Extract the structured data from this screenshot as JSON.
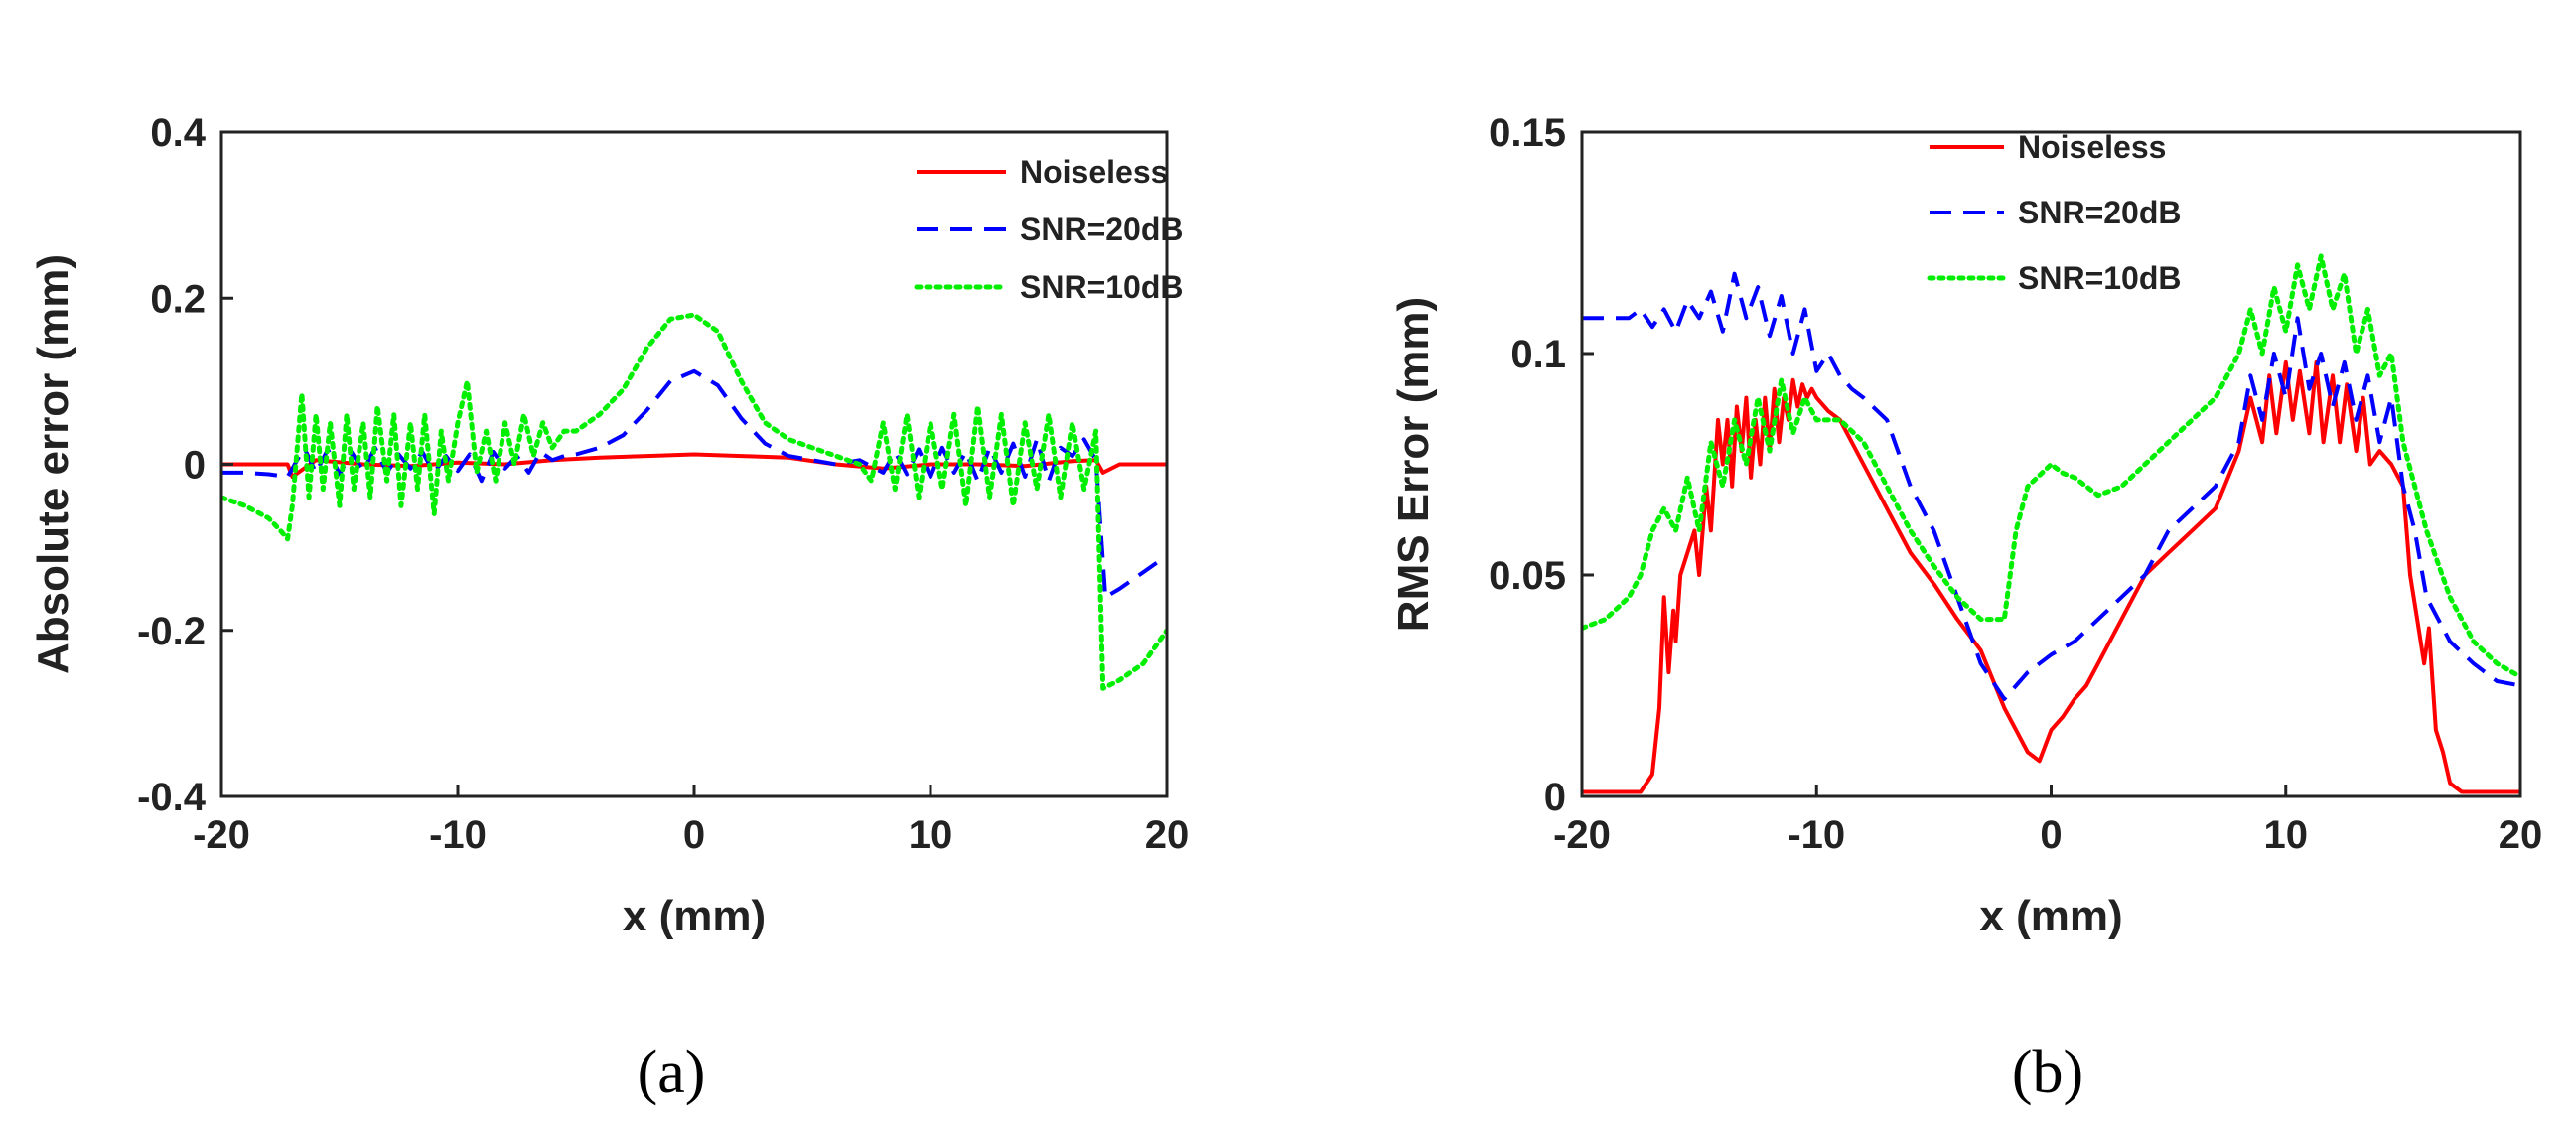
{
  "chart_data": [
    {
      "type": "line",
      "panel_label": "(a)",
      "xlabel": "x (mm)",
      "ylabel": "Absolute error (mm)",
      "xlim": [
        -20,
        20
      ],
      "ylim": [
        -0.4,
        0.4
      ],
      "xticks": [
        -20,
        -10,
        0,
        10,
        20
      ],
      "xtick_labels": [
        "-20",
        "-10",
        "0",
        "10",
        "20"
      ],
      "yticks": [
        -0.4,
        -0.2,
        0,
        0.2,
        0.4
      ],
      "ytick_labels": [
        "-0.4",
        "-0.2",
        "0",
        "0.2",
        "0.4"
      ],
      "legend_position": "top-right",
      "grid": false,
      "series": [
        {
          "name": "Noiseless",
          "color": "#ff0000",
          "style": "solid",
          "x": [
            -20,
            -17.2,
            -17,
            -16,
            -14,
            -12,
            -10,
            -8,
            -6,
            -4,
            -2,
            0,
            2,
            4,
            6,
            8,
            10,
            12,
            14,
            16,
            17,
            17.3,
            18,
            20
          ],
          "y": [
            0,
            0,
            -0.015,
            0.005,
            0,
            -0.002,
            0.002,
            0,
            0.005,
            0.008,
            0.01,
            0.012,
            0.01,
            0.008,
            0,
            -0.005,
            0,
            0,
            -0.002,
            0.004,
            0.005,
            -0.01,
            0,
            0
          ]
        },
        {
          "name": "SNR=20dB",
          "color": "#0000ff",
          "style": "dashed",
          "x": [
            -20,
            -19,
            -18,
            -17.2,
            -17,
            -16.5,
            -16,
            -15.5,
            -15,
            -14.5,
            -14,
            -13.5,
            -13,
            -12.5,
            -12,
            -11.5,
            -11,
            -10.5,
            -10,
            -9.5,
            -9,
            -8.5,
            -8,
            -7.5,
            -7,
            -6.5,
            -6,
            -5.5,
            -5,
            -4,
            -3,
            -2,
            -1,
            0,
            1,
            2,
            3,
            4,
            5,
            6,
            7,
            8,
            8.5,
            9,
            9.5,
            10,
            10.5,
            11,
            11.5,
            12,
            12.5,
            13,
            13.5,
            14,
            14.5,
            15,
            15.5,
            16,
            16.5,
            17,
            17.4,
            18,
            19,
            20
          ],
          "y": [
            -0.01,
            -0.01,
            -0.012,
            -0.015,
            -0.005,
            0.02,
            -0.01,
            0.018,
            -0.012,
            0.015,
            -0.008,
            0.02,
            -0.01,
            0.012,
            -0.005,
            0.015,
            -0.01,
            0.01,
            -0.008,
            0.012,
            -0.02,
            0.015,
            -0.005,
            0.01,
            -0.01,
            0.015,
            0.005,
            0.01,
            0.012,
            0.02,
            0.035,
            0.065,
            0.1,
            0.112,
            0.095,
            0.055,
            0.025,
            0.01,
            0.005,
            0,
            0.005,
            -0.01,
            0.015,
            -0.012,
            0.018,
            -0.015,
            0.02,
            -0.01,
            0.015,
            -0.02,
            0.02,
            -0.01,
            0.025,
            -0.015,
            0.03,
            -0.02,
            0.02,
            0.01,
            0.03,
            0.005,
            -0.16,
            -0.15,
            -0.13,
            -0.11
          ]
        },
        {
          "name": "SNR=10dB",
          "color": "#00ee00",
          "style": "dotted",
          "x": [
            -20,
            -19,
            -18,
            -17.5,
            -17.2,
            -17,
            -16.6,
            -16.3,
            -16,
            -15.7,
            -15.4,
            -15,
            -14.7,
            -14.4,
            -14,
            -13.7,
            -13.4,
            -13,
            -12.7,
            -12.4,
            -12,
            -11.7,
            -11.4,
            -11,
            -10.7,
            -10.4,
            -10,
            -9.6,
            -9.2,
            -8.8,
            -8.4,
            -8,
            -7.6,
            -7.2,
            -6.8,
            -6.4,
            -6,
            -5.5,
            -5,
            -4,
            -3,
            -2,
            -1,
            0,
            1,
            2,
            3,
            4,
            5,
            6,
            7,
            7.5,
            8,
            8.5,
            9,
            9.5,
            10,
            10.5,
            11,
            11.5,
            12,
            12.5,
            13,
            13.5,
            14,
            14.5,
            15,
            15.5,
            16,
            16.5,
            17,
            17.3,
            18,
            19,
            20
          ],
          "y": [
            -0.04,
            -0.05,
            -0.065,
            -0.08,
            -0.09,
            -0.05,
            0.085,
            -0.04,
            0.06,
            -0.03,
            0.05,
            -0.05,
            0.06,
            -0.03,
            0.05,
            -0.04,
            0.07,
            -0.02,
            0.06,
            -0.05,
            0.05,
            -0.03,
            0.06,
            -0.06,
            0.04,
            -0.02,
            0.05,
            0.1,
            -0.01,
            0.04,
            -0.02,
            0.05,
            0,
            0.06,
            0.01,
            0.05,
            0.02,
            0.04,
            0.04,
            0.06,
            0.09,
            0.14,
            0.175,
            0.18,
            0.16,
            0.1,
            0.05,
            0.03,
            0.02,
            0.01,
            0,
            -0.02,
            0.05,
            -0.03,
            0.06,
            -0.04,
            0.05,
            -0.03,
            0.06,
            -0.05,
            0.07,
            -0.04,
            0.06,
            -0.05,
            0.05,
            -0.03,
            0.06,
            -0.04,
            0.05,
            -0.03,
            0.04,
            -0.27,
            -0.26,
            -0.24,
            -0.2
          ]
        }
      ]
    },
    {
      "type": "line",
      "panel_label": "(b)",
      "xlabel": "x (mm)",
      "ylabel": "RMS Error (mm)",
      "xlim": [
        -20,
        20
      ],
      "ylim": [
        0,
        0.15
      ],
      "xticks": [
        -20,
        -10,
        0,
        10,
        20
      ],
      "xtick_labels": [
        "-20",
        "-10",
        "0",
        "10",
        "20"
      ],
      "yticks": [
        0,
        0.05,
        0.1,
        0.15
      ],
      "ytick_labels": [
        "0",
        "0.05",
        "0.1",
        "0.15"
      ],
      "legend_position": "top-center",
      "grid": false,
      "series": [
        {
          "name": "Noiseless",
          "color": "#ff0000",
          "style": "solid",
          "x": [
            -20,
            -18,
            -17.5,
            -17,
            -16.7,
            -16.5,
            -16.3,
            -16.1,
            -16,
            -15.8,
            -15.5,
            -15.2,
            -15,
            -14.7,
            -14.5,
            -14.2,
            -14,
            -13.8,
            -13.6,
            -13.4,
            -13.2,
            -13,
            -12.8,
            -12.6,
            -12.4,
            -12.2,
            -12,
            -11.8,
            -11.6,
            -11.4,
            -11.2,
            -11,
            -10.8,
            -10.6,
            -10.4,
            -10.2,
            -10,
            -9.5,
            -9,
            -8.5,
            -8,
            -7,
            -6,
            -5,
            -4,
            -3,
            -2,
            -1.5,
            -1,
            -0.5,
            0,
            0.5,
            1,
            1.5,
            2,
            3,
            4,
            5,
            6,
            7,
            8,
            8.5,
            9,
            9.3,
            9.6,
            10,
            10.3,
            10.6,
            11,
            11.3,
            11.6,
            12,
            12.3,
            12.6,
            13,
            13.3,
            13.6,
            14,
            14.5,
            15,
            15.3,
            15.6,
            15.9,
            16.1,
            16.4,
            16.7,
            17,
            17.5,
            18,
            20
          ],
          "y": [
            0.001,
            0.001,
            0.001,
            0.005,
            0.02,
            0.045,
            0.028,
            0.042,
            0.035,
            0.05,
            0.055,
            0.06,
            0.05,
            0.07,
            0.06,
            0.085,
            0.075,
            0.085,
            0.07,
            0.088,
            0.078,
            0.09,
            0.072,
            0.085,
            0.075,
            0.09,
            0.078,
            0.092,
            0.08,
            0.09,
            0.085,
            0.094,
            0.088,
            0.093,
            0.09,
            0.092,
            0.09,
            0.087,
            0.085,
            0.08,
            0.075,
            0.065,
            0.055,
            0.048,
            0.04,
            0.033,
            0.02,
            0.015,
            0.01,
            0.008,
            0.015,
            0.018,
            0.022,
            0.025,
            0.03,
            0.04,
            0.05,
            0.055,
            0.06,
            0.065,
            0.078,
            0.09,
            0.08,
            0.095,
            0.082,
            0.098,
            0.085,
            0.096,
            0.082,
            0.098,
            0.08,
            0.095,
            0.08,
            0.093,
            0.078,
            0.09,
            0.075,
            0.078,
            0.075,
            0.07,
            0.05,
            0.04,
            0.03,
            0.038,
            0.015,
            0.01,
            0.003,
            0.001,
            0.001,
            0.001
          ]
        },
        {
          "name": "SNR=20dB",
          "color": "#0000ff",
          "style": "dashed",
          "x": [
            -20,
            -19,
            -18,
            -17.5,
            -17,
            -16.5,
            -16,
            -15.5,
            -15,
            -14.5,
            -14,
            -13.5,
            -13,
            -12.5,
            -12,
            -11.5,
            -11,
            -10.5,
            -10,
            -9.5,
            -9,
            -8.5,
            -8,
            -7,
            -6,
            -5,
            -4,
            -3,
            -2,
            -1,
            0,
            1,
            2,
            3,
            4,
            5,
            6,
            7,
            8,
            8.5,
            9,
            9.5,
            10,
            10.5,
            11,
            11.5,
            12,
            12.5,
            13,
            13.5,
            14,
            14.5,
            15,
            15.5,
            16,
            17,
            18,
            19,
            20
          ],
          "y": [
            0.108,
            0.108,
            0.108,
            0.11,
            0.106,
            0.11,
            0.105,
            0.112,
            0.108,
            0.114,
            0.105,
            0.118,
            0.108,
            0.115,
            0.104,
            0.113,
            0.1,
            0.11,
            0.096,
            0.1,
            0.095,
            0.092,
            0.09,
            0.085,
            0.07,
            0.06,
            0.045,
            0.03,
            0.022,
            0.028,
            0.032,
            0.035,
            0.04,
            0.045,
            0.05,
            0.06,
            0.065,
            0.07,
            0.08,
            0.095,
            0.085,
            0.1,
            0.09,
            0.108,
            0.092,
            0.1,
            0.088,
            0.098,
            0.085,
            0.095,
            0.08,
            0.09,
            0.07,
            0.06,
            0.045,
            0.035,
            0.03,
            0.026,
            0.025
          ]
        },
        {
          "name": "SNR=10dB",
          "color": "#00ee00",
          "style": "dotted",
          "x": [
            -20,
            -19,
            -18,
            -17.5,
            -17,
            -16.5,
            -16,
            -15.5,
            -15,
            -14.5,
            -14,
            -13.5,
            -13,
            -12.5,
            -12,
            -11.5,
            -11,
            -10.5,
            -10,
            -9,
            -8,
            -7,
            -6,
            -5,
            -4,
            -3,
            -2,
            -1.5,
            -1,
            0,
            0.5,
            1,
            1.5,
            2,
            3,
            4,
            5,
            6,
            7,
            8,
            8.5,
            9,
            9.5,
            10,
            10.5,
            11,
            11.5,
            12,
            12.5,
            13,
            13.5,
            14,
            14.5,
            15,
            15.5,
            16,
            17,
            18,
            19,
            20
          ],
          "y": [
            0.038,
            0.04,
            0.045,
            0.05,
            0.06,
            0.065,
            0.06,
            0.072,
            0.06,
            0.08,
            0.07,
            0.085,
            0.075,
            0.09,
            0.078,
            0.094,
            0.082,
            0.09,
            0.085,
            0.085,
            0.08,
            0.07,
            0.06,
            0.052,
            0.045,
            0.04,
            0.04,
            0.06,
            0.07,
            0.075,
            0.073,
            0.072,
            0.07,
            0.068,
            0.07,
            0.075,
            0.08,
            0.085,
            0.09,
            0.1,
            0.11,
            0.1,
            0.115,
            0.105,
            0.12,
            0.11,
            0.122,
            0.11,
            0.118,
            0.1,
            0.11,
            0.095,
            0.1,
            0.08,
            0.07,
            0.06,
            0.045,
            0.035,
            0.03,
            0.027
          ]
        }
      ]
    }
  ]
}
